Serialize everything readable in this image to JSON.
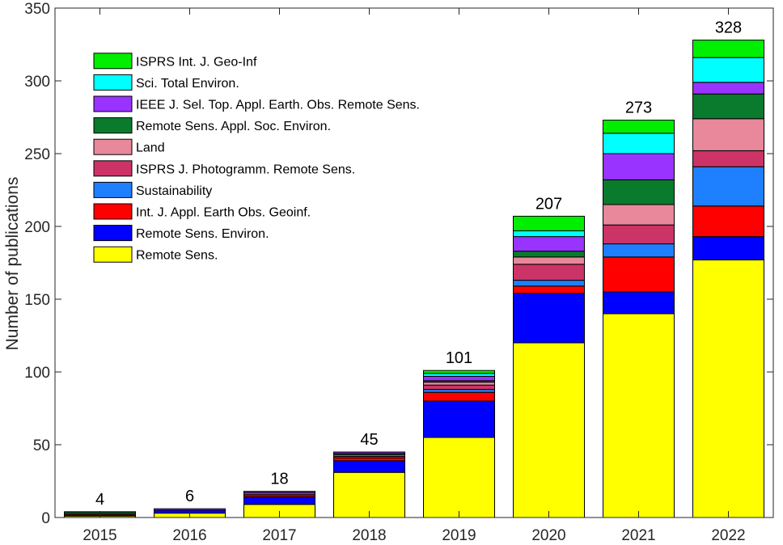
{
  "chart_data": {
    "type": "bar",
    "stacked": true,
    "xlabel": "",
    "ylabel": "Number of publications",
    "ylim": [
      0,
      350
    ],
    "yticks": [
      0,
      50,
      100,
      150,
      200,
      250,
      300,
      350
    ],
    "categories": [
      "2015",
      "2016",
      "2017",
      "2018",
      "2019",
      "2020",
      "2021",
      "2022"
    ],
    "totals": [
      4,
      6,
      18,
      45,
      101,
      207,
      273,
      328
    ],
    "total_labels": [
      "4",
      "6",
      "18",
      "45",
      "101",
      "207",
      "273",
      "328"
    ],
    "grid": false,
    "legend_position": "top-left",
    "series": [
      {
        "name": "Remote Sens.",
        "color": "#ffff00",
        "values": [
          1,
          3,
          9,
          31,
          55,
          120,
          140,
          177
        ]
      },
      {
        "name": "Remote Sens. Environ.",
        "color": "#0000ff",
        "values": [
          1,
          2,
          5,
          8,
          25,
          34,
          15,
          16
        ]
      },
      {
        "name": "Int. J. Appl. Earth Obs. Geoinf.",
        "color": "#ff0000",
        "values": [
          0,
          0,
          1,
          2,
          6,
          5,
          24,
          21
        ]
      },
      {
        "name": "Sustainability",
        "color": "#1e7fff",
        "values": [
          0,
          0,
          0,
          0,
          2,
          4,
          9,
          27
        ]
      },
      {
        "name": "ISPRS J. Photogramm. Remote Sens.",
        "color": "#cc3366",
        "values": [
          1,
          0,
          1,
          1,
          3,
          11,
          13,
          11
        ]
      },
      {
        "name": "Land",
        "color": "#e8889a",
        "values": [
          0,
          0,
          1,
          1,
          2,
          5,
          14,
          22
        ]
      },
      {
        "name": "Remote Sens. Appl. Soc. Environ.",
        "color": "#0a7a2c",
        "values": [
          1,
          0,
          0,
          1,
          1,
          4,
          17,
          17
        ]
      },
      {
        "name": "IEEE J. Sel. Top. Appl. Earth. Obs. Remote Sens.",
        "color": "#9933ff",
        "values": [
          0,
          1,
          1,
          1,
          3,
          10,
          18,
          8
        ]
      },
      {
        "name": "Sci. Total Environ.",
        "color": "#00ffff",
        "values": [
          0,
          0,
          0,
          0,
          2,
          4,
          14,
          17
        ]
      },
      {
        "name": "ISPRS Int. J. Geo-Inf",
        "color": "#00ee00",
        "values": [
          0,
          0,
          0,
          0,
          2,
          10,
          9,
          12
        ]
      }
    ]
  }
}
